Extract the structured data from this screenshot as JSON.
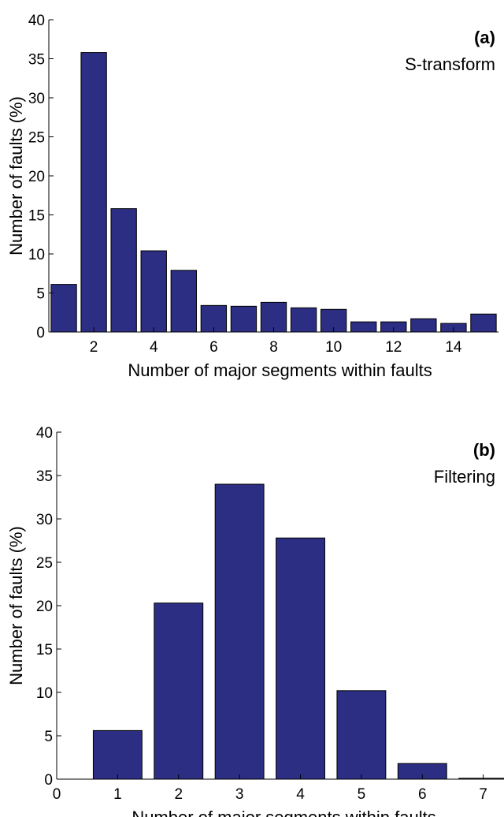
{
  "chart_data": [
    {
      "type": "bar",
      "annotations": [
        "(a)",
        "S-transform"
      ],
      "x_label": "Number of major segments within faults",
      "y_label": "Number of faults (%)",
      "x": [
        1,
        2,
        3,
        4,
        5,
        6,
        7,
        8,
        9,
        10,
        11,
        12,
        13,
        14,
        15
      ],
      "values": [
        6.1,
        35.8,
        15.8,
        10.4,
        7.9,
        3.4,
        3.3,
        3.8,
        3.1,
        2.9,
        1.3,
        1.3,
        1.7,
        1.1,
        2.3
      ],
      "color": "#2b2e83",
      "xlim": [
        0.5,
        15.5
      ],
      "xticks": [
        2,
        4,
        6,
        8,
        10,
        12,
        14
      ],
      "ylim": [
        0,
        40
      ],
      "yticks": [
        0,
        5,
        10,
        15,
        20,
        25,
        30,
        35,
        40
      ]
    },
    {
      "type": "bar",
      "annotations": [
        "(b)",
        "Filtering"
      ],
      "x_label": "Number of major segments within faults",
      "y_label": "Number of faults (%)",
      "x": [
        1,
        2,
        3,
        4,
        5,
        6,
        7
      ],
      "values": [
        5.6,
        20.3,
        34.0,
        27.8,
        10.2,
        1.8,
        0.1
      ],
      "color": "#2b2e83",
      "xlim": [
        0,
        7.25
      ],
      "xticks": [
        0,
        1,
        2,
        3,
        4,
        5,
        6,
        7
      ],
      "ylim": [
        0,
        40
      ],
      "yticks": [
        0,
        5,
        10,
        15,
        20,
        25,
        30,
        35,
        40
      ]
    }
  ]
}
